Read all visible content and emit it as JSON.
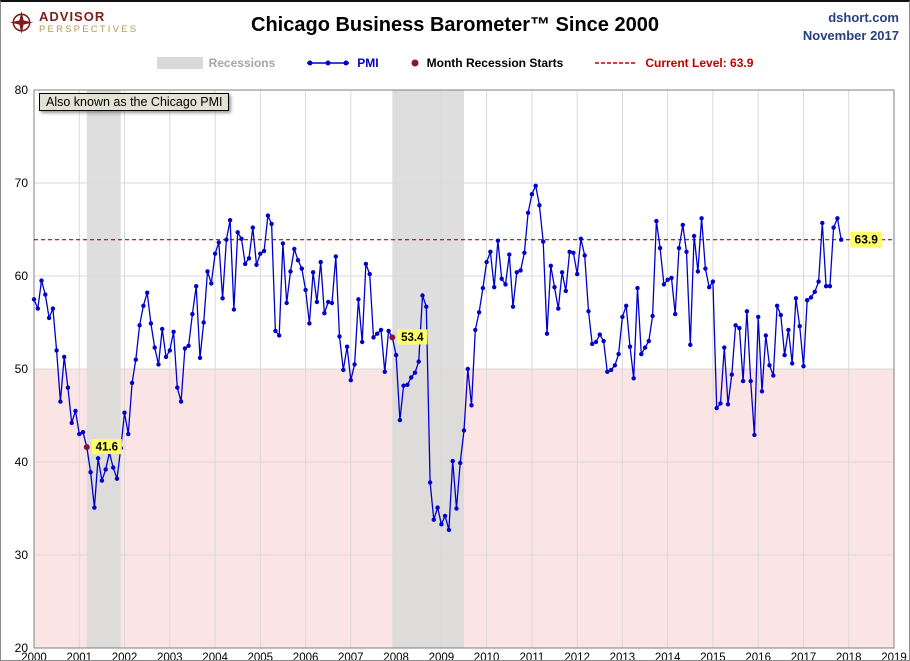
{
  "header": {
    "logo_line1": "ADVISOR",
    "logo_line2": "PERSPECTIVES",
    "title": "Chicago Business Barometer™ Since 2000",
    "source": "dshort.com",
    "date": "November 2017"
  },
  "legend": {
    "items": [
      {
        "label": "Recessions"
      },
      {
        "label": "PMI"
      },
      {
        "label": "Month Recession Starts"
      },
      {
        "label": "Current Level: 63.9"
      }
    ]
  },
  "annotation": "Also known as the Chicago PMI",
  "colors": {
    "pmi_blue": "#0000cc",
    "recession_gray": "#d9d9d9",
    "recession_dot": "#8b1240",
    "current_red": "#c00000",
    "below50_pink": "#fbe4e4",
    "highlight_yellow": "#ffff66",
    "grid_gray": "#d9d9d9",
    "legend_gray_text": "#a6a6a6",
    "header_blue": "#26417e",
    "logo_red": "#7f1c1c",
    "logo_gold": "#b49a55"
  },
  "chart_data": {
    "type": "line",
    "title": "Chicago Business Barometer™ Since 2000",
    "xlabel": "",
    "ylabel": "",
    "xlim": [
      2000,
      2019
    ],
    "ylim": [
      20,
      80
    ],
    "xticks": [
      2000,
      2001,
      2002,
      2003,
      2004,
      2005,
      2006,
      2007,
      2008,
      2009,
      2010,
      2011,
      2012,
      2013,
      2014,
      2015,
      2016,
      2017,
      2018,
      2019
    ],
    "yticks": [
      20,
      30,
      40,
      50,
      60,
      70,
      80
    ],
    "grid": true,
    "legend_position": "top",
    "current_level": 63.9,
    "current_level_label": "63.9",
    "below_50_region": {
      "from": 20,
      "to": 50
    },
    "recessions": [
      {
        "start": "2001-03",
        "end": "2001-11"
      },
      {
        "start": "2007-12",
        "end": "2009-06"
      }
    ],
    "recession_start_points": [
      {
        "month": "2001-03",
        "value": 41.6,
        "label": "41.6"
      },
      {
        "month": "2007-12",
        "value": 53.4,
        "label": "53.4"
      }
    ],
    "series": [
      {
        "name": "PMI",
        "start": "2000-01",
        "frequency": "monthly",
        "values": [
          57.5,
          56.5,
          59.5,
          58.0,
          55.5,
          56.5,
          52.0,
          46.5,
          51.3,
          48.0,
          44.2,
          45.5,
          43.0,
          43.2,
          41.6,
          38.9,
          35.1,
          40.4,
          38.0,
          39.2,
          41.0,
          39.4,
          38.2,
          41.5,
          45.3,
          43.0,
          48.5,
          51.0,
          54.7,
          56.8,
          58.2,
          54.9,
          52.3,
          50.5,
          54.3,
          51.3,
          52.0,
          54.0,
          48.0,
          46.5,
          52.2,
          52.5,
          55.9,
          58.9,
          51.2,
          55.0,
          60.5,
          59.2,
          62.4,
          63.6,
          57.6,
          63.9,
          66.0,
          56.4,
          64.7,
          64.0,
          61.3,
          61.9,
          65.2,
          61.2,
          62.4,
          62.7,
          66.5,
          65.6,
          54.1,
          53.6,
          63.5,
          57.1,
          60.5,
          62.9,
          61.7,
          60.8,
          58.5,
          54.9,
          60.4,
          57.2,
          61.5,
          56.0,
          57.2,
          57.1,
          62.1,
          53.5,
          49.9,
          52.4,
          48.8,
          50.5,
          57.5,
          52.9,
          61.3,
          60.2,
          53.4,
          53.8,
          54.2,
          49.7,
          54.1,
          53.4,
          51.5,
          44.5,
          48.2,
          48.3,
          49.1,
          49.6,
          50.8,
          57.9,
          56.7,
          37.8,
          33.8,
          35.1,
          33.3,
          34.2,
          32.7,
          40.1,
          35.0,
          39.9,
          43.4,
          50.0,
          46.1,
          54.2,
          56.1,
          58.7,
          61.5,
          62.6,
          58.8,
          63.8,
          59.7,
          59.1,
          62.3,
          56.7,
          60.4,
          60.6,
          62.5,
          66.8,
          68.8,
          69.7,
          67.6,
          63.7,
          53.8,
          61.1,
          58.8,
          56.5,
          60.4,
          58.4,
          62.6,
          62.5,
          60.2,
          64.0,
          62.2,
          56.2,
          52.7,
          52.9,
          53.7,
          53.0,
          49.7,
          49.9,
          50.4,
          51.6,
          55.6,
          56.8,
          52.4,
          49.0,
          58.7,
          51.6,
          52.3,
          53.0,
          55.7,
          65.9,
          63.0,
          59.1,
          59.6,
          59.8,
          55.9,
          63.0,
          65.5,
          62.6,
          52.6,
          64.3,
          60.5,
          66.2,
          60.8,
          58.8,
          59.4,
          45.8,
          46.3,
          52.3,
          46.2,
          49.4,
          54.7,
          54.4,
          48.7,
          56.2,
          48.7,
          42.9,
          55.6,
          47.6,
          53.6,
          50.4,
          49.3,
          56.8,
          55.8,
          51.5,
          54.2,
          50.6,
          57.6,
          54.6,
          50.3,
          57.4,
          57.7,
          58.3,
          59.4,
          65.7,
          58.9,
          58.9,
          65.2,
          66.2,
          63.9
        ]
      }
    ]
  }
}
